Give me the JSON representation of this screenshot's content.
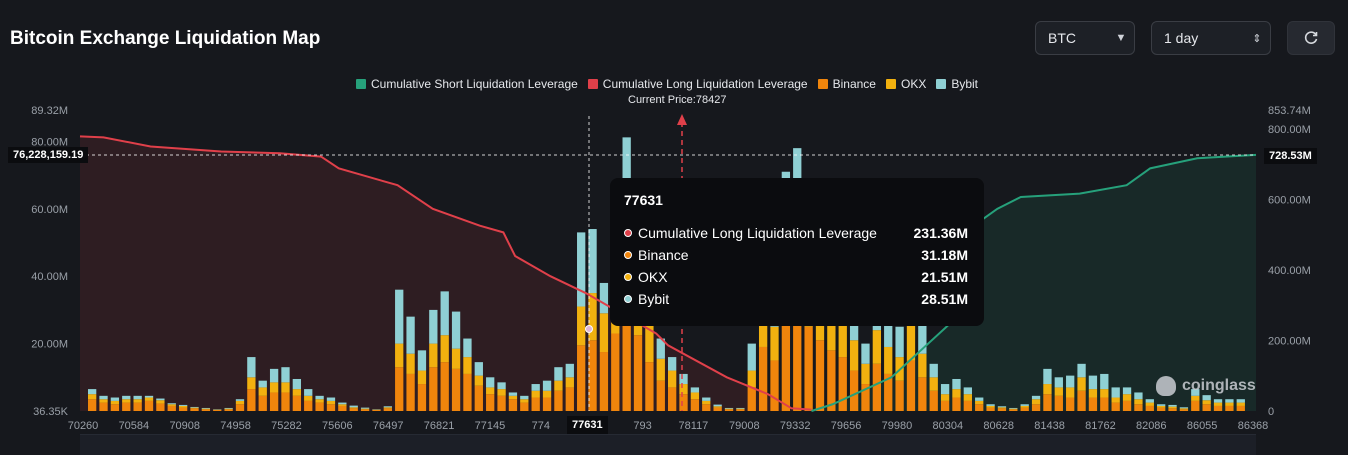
{
  "header": {
    "title": "Bitcoin Exchange Liquidation Map",
    "coin_select": "BTC",
    "range_select": "1 day",
    "refresh_icon": "refresh-icon"
  },
  "legend": [
    {
      "label": "Cumulative Short Liquidation Leverage",
      "color": "#26a17b"
    },
    {
      "label": "Cumulative Long Liquidation Leverage",
      "color": "#e0404a"
    },
    {
      "label": "Binance",
      "color": "#f0850c"
    },
    {
      "label": "OKX",
      "color": "#f2b10f"
    },
    {
      "label": "Bybit",
      "color": "#8fd0d4"
    }
  ],
  "current_price_text": "Current Price:78427",
  "crosshair": {
    "left_value_label": "76,228,159.19",
    "right_value_label": "728.53M",
    "x_label": "77631"
  },
  "tooltip": {
    "title": "77631",
    "rows": [
      {
        "name": "Cumulative Long Liquidation Leverage",
        "value": "231.36M",
        "color": "#e0404a"
      },
      {
        "name": "Binance",
        "value": "31.18M",
        "color": "#f0850c"
      },
      {
        "name": "OKX",
        "value": "21.51M",
        "color": "#f2b10f"
      },
      {
        "name": "Bybit",
        "value": "28.51M",
        "color": "#8fd0d4"
      }
    ]
  },
  "watermark": "coinglass",
  "chart_data": {
    "type": "bar",
    "title": "Bitcoin Exchange Liquidation Map",
    "x_tick_labels": [
      "70260",
      "70584",
      "70908",
      "74958",
      "75282",
      "75606",
      "76497",
      "76821",
      "77145",
      "774",
      "77631",
      "793",
      "78117",
      "79008",
      "79332",
      "79656",
      "79980",
      "80304",
      "80628",
      "81438",
      "81762",
      "82086",
      "86055",
      "86368"
    ],
    "left_axis": {
      "tick_labels": [
        "36.35K",
        "20.00M",
        "40.00M",
        "60.00M",
        "80.00M",
        "89.32M"
      ],
      "range": [
        0,
        89.32
      ]
    },
    "right_axis": {
      "tick_labels": [
        "0",
        "200.00M",
        "400.00M",
        "600.00M",
        "800.00M",
        "853.74M"
      ],
      "range": [
        0,
        853.74
      ]
    },
    "current_price": 78427,
    "bars_binance": [
      3.5,
      2.5,
      2,
      2.5,
      2.5,
      3,
      2.2,
      1.5,
      1,
      0.8,
      0.5,
      0.3,
      0.5,
      2,
      6.5,
      4.5,
      5.5,
      5.5,
      4.5,
      3,
      2.5,
      2,
      1.5,
      0.8,
      0.5,
      0.3,
      0.8,
      13,
      11,
      8,
      13,
      14.5,
      12.5,
      11,
      7.5,
      5,
      4.5,
      3.5,
      2.5,
      4,
      4,
      6,
      7,
      19.5,
      21,
      17.5,
      23,
      31.18,
      22.5,
      14.5,
      9,
      7,
      5,
      3.5,
      2,
      1,
      0.5,
      0.5,
      7,
      19,
      15,
      28,
      31,
      25,
      21,
      18,
      16,
      12,
      8,
      14,
      11,
      9,
      15,
      10,
      6,
      3,
      4,
      3,
      2,
      1,
      0.8,
      0.5,
      1,
      2,
      5,
      4.5,
      4,
      6,
      4,
      4,
      2.5,
      3,
      2,
      1.5,
      1,
      0.8,
      0.5,
      3,
      2,
      1.5,
      1.5,
      1.5
    ],
    "bars_okx": [
      1.5,
      1,
      1,
      1,
      1,
      1,
      1,
      0.5,
      0.5,
      0.2,
      0.2,
      0.1,
      0.2,
      1,
      3.5,
      2.5,
      3,
      3,
      2,
      1.5,
      1,
      1,
      0.5,
      0.3,
      0.2,
      0.1,
      0.3,
      7,
      6,
      4,
      7,
      8,
      6,
      5,
      3,
      2,
      2,
      1,
      1,
      2,
      2,
      3,
      3,
      11.5,
      14,
      11.5,
      14.5,
      21.51,
      15,
      11,
      6.5,
      5,
      3,
      2,
      1,
      0.4,
      0.2,
      0.2,
      5,
      14,
      10,
      20,
      23,
      19,
      15,
      13,
      12,
      9,
      6,
      10,
      8,
      7,
      11,
      7,
      4,
      2,
      2.5,
      2,
      1,
      0.5,
      0.3,
      0.2,
      0.5,
      1.5,
      3,
      2.5,
      3,
      4,
      2.5,
      2.5,
      1.5,
      2,
      1.5,
      1,
      0.5,
      0.5,
      0.3,
      1.5,
      1.2,
      1,
      1,
      1
    ],
    "bars_bybit": [
      1.5,
      1,
      1,
      1,
      1,
      0.5,
      0.5,
      0.3,
      0.3,
      0.2,
      0.2,
      0.1,
      0.2,
      0.5,
      6,
      2,
      4,
      4.5,
      3,
      2,
      1,
      1,
      0.5,
      0.5,
      0.3,
      0.1,
      0.3,
      16,
      11,
      6,
      10,
      13,
      11,
      5.5,
      4,
      3,
      2,
      1,
      1,
      2,
      3,
      4,
      4,
      22,
      19,
      9,
      20,
      28.51,
      21,
      10,
      6,
      4,
      3,
      1.5,
      1,
      0.5,
      0.2,
      0.2,
      8,
      29,
      9,
      23,
      24,
      12,
      11,
      8,
      9,
      12,
      6,
      13,
      12,
      9,
      14,
      11,
      4,
      3,
      3,
      2,
      1,
      0.5,
      0.3,
      0.2,
      0.5,
      1,
      4.5,
      3,
      3.5,
      4,
      4,
      4.5,
      3,
      2,
      2,
      1,
      0.5,
      0.5,
      0.3,
      2,
      1.5,
      1,
      1,
      1
    ],
    "cumulative_long_curve": [
      [
        0,
        81.5
      ],
      [
        0.02,
        81.2
      ],
      [
        0.06,
        78.5
      ],
      [
        0.12,
        77
      ],
      [
        0.17,
        76.5
      ],
      [
        0.205,
        75.5
      ],
      [
        0.22,
        72
      ],
      [
        0.27,
        67
      ],
      [
        0.3,
        60
      ],
      [
        0.34,
        55
      ],
      [
        0.36,
        53
      ],
      [
        0.37,
        46
      ],
      [
        0.4,
        40
      ],
      [
        0.43,
        35
      ],
      [
        0.46,
        29
      ],
      [
        0.49,
        23
      ],
      [
        0.5,
        19.5
      ],
      [
        0.55,
        10
      ],
      [
        0.585,
        5
      ],
      [
        0.605,
        0.8
      ],
      [
        0.622,
        0.4
      ]
    ],
    "cumulative_short_curve": [
      [
        0.622,
        0
      ],
      [
        0.64,
        2
      ],
      [
        0.69,
        10
      ],
      [
        0.74,
        26
      ],
      [
        0.75,
        42
      ],
      [
        0.76,
        55
      ],
      [
        0.78,
        60
      ],
      [
        0.8,
        63.5
      ],
      [
        0.85,
        64.5
      ],
      [
        0.89,
        67
      ],
      [
        0.91,
        72
      ],
      [
        0.95,
        75
      ],
      [
        1.0,
        76
      ]
    ],
    "short_curve_right_axis_max": 853.74
  }
}
